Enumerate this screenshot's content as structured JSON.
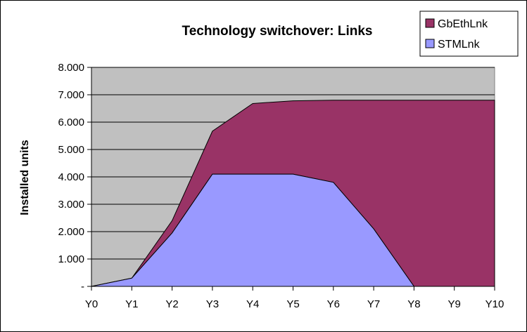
{
  "chart_data": {
    "type": "area",
    "stacked": true,
    "title": "Technology switchover: Links",
    "xlabel": "",
    "ylabel": "Installed units",
    "categories": [
      "Y0",
      "Y1",
      "Y2",
      "Y3",
      "Y4",
      "Y5",
      "Y6",
      "Y7",
      "Y8",
      "Y9",
      "Y10"
    ],
    "ylim": [
      0,
      8000
    ],
    "yticks": [
      0,
      1000,
      2000,
      3000,
      4000,
      5000,
      6000,
      7000,
      8000
    ],
    "ytick_labels": [
      "-",
      "1.000",
      "2.000",
      "3.000",
      "4.000",
      "5.000",
      "6.000",
      "7.000",
      "8.000"
    ],
    "grid": true,
    "legend_position": "top-right",
    "series": [
      {
        "name": "STMLnk",
        "color": "#9999ff",
        "values": [
          0,
          300,
          1950,
          4100,
          4100,
          4100,
          3800,
          2100,
          0,
          0,
          0
        ]
      },
      {
        "name": "GbEthLnk",
        "color": "#993366",
        "values": [
          0,
          0,
          450,
          1570,
          2580,
          2680,
          3000,
          4700,
          6800,
          6800,
          6800
        ]
      }
    ],
    "plot_background": "#c0c0c0"
  }
}
